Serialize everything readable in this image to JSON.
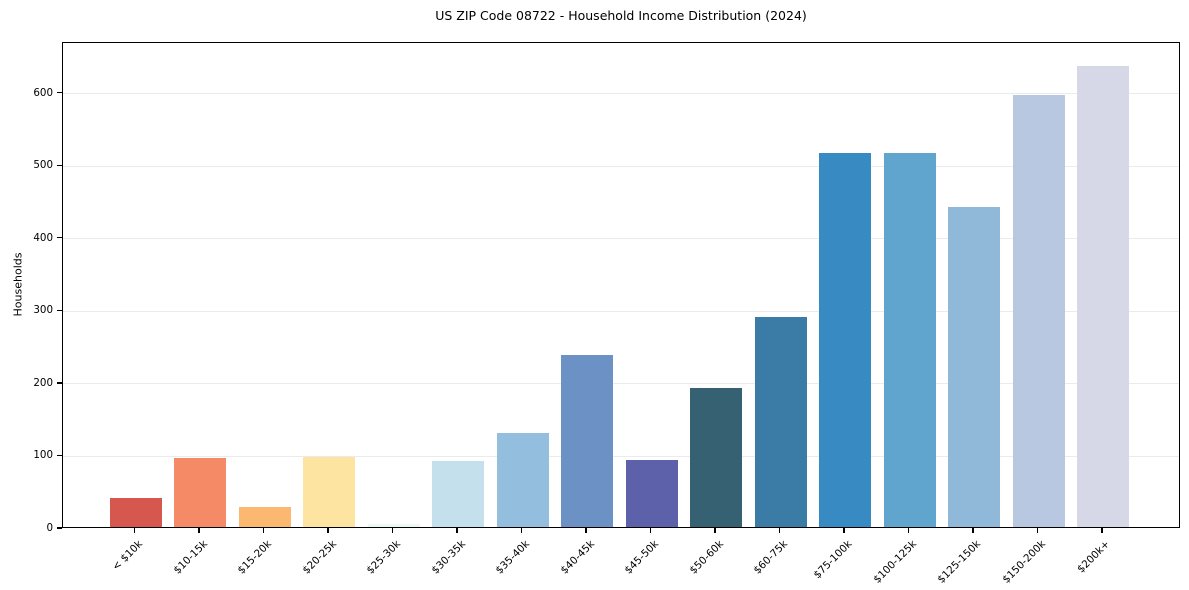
{
  "chart_data": {
    "type": "bar",
    "title": "US ZIP Code 08722 - Household Income Distribution (2024)",
    "xlabel": "",
    "ylabel": "Households",
    "categories": [
      "< $10k",
      "$10-15k",
      "$15-20k",
      "$20-25k",
      "$25-30k",
      "$30-35k",
      "$35-40k",
      "$40-45k",
      "$45-50k",
      "$50-60k",
      "$60-75k",
      "$75-100k",
      "$100-125k",
      "$125-150k",
      "$150-200k",
      "$200k+"
    ],
    "values": [
      40,
      95,
      28,
      96,
      4,
      91,
      130,
      237,
      93,
      192,
      289,
      516,
      516,
      441,
      595,
      636
    ],
    "bar_colors": [
      "#d6574e",
      "#f58a67",
      "#fab871",
      "#fde4a0",
      "#edf8f2",
      "#c3e0ec",
      "#93bedd",
      "#6c91c5",
      "#5c61aa",
      "#366173",
      "#3a7ca5",
      "#378bc2",
      "#60a5cd",
      "#90b8d9",
      "#b8c8e1",
      "#d6d8e7"
    ],
    "ylim": [
      0,
      670
    ],
    "yticks": [
      0,
      100,
      200,
      300,
      400,
      500,
      600
    ],
    "grid": "horizontal",
    "legend_position": "none",
    "colors": {
      "background": "#ffffff",
      "grid": "#ebebeb",
      "spine": "#000000",
      "text": "#000000"
    }
  }
}
